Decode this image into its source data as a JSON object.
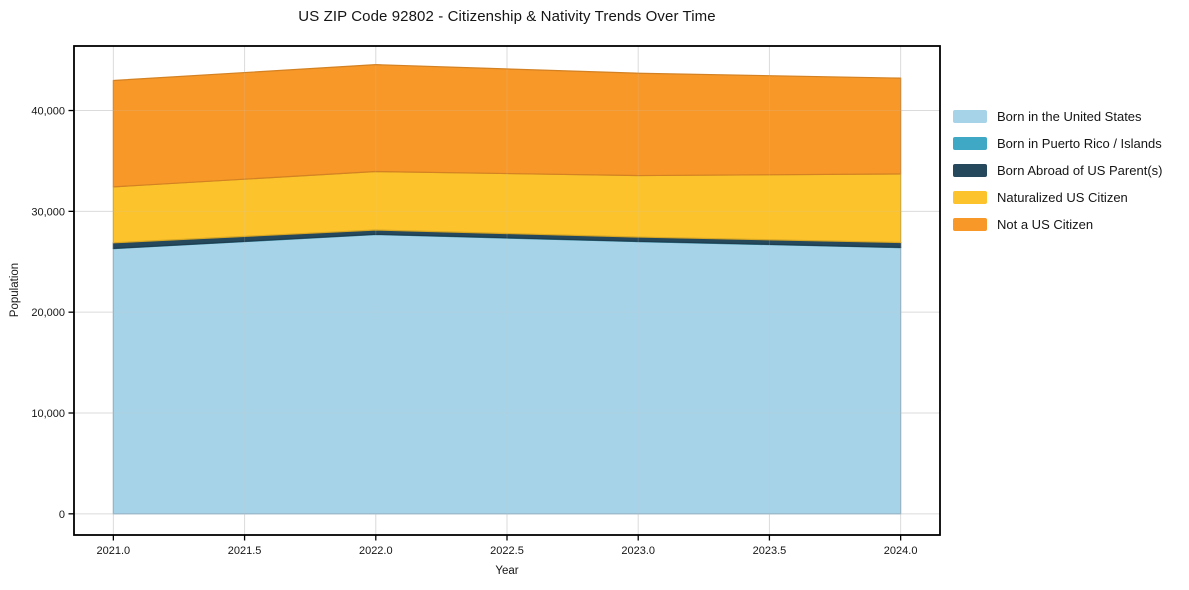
{
  "chart_data": {
    "type": "area",
    "stacked": true,
    "title": "US ZIP Code 92802 - Citizenship & Nativity Trends Over Time",
    "xlabel": "Year",
    "ylabel": "Population",
    "x": [
      2021,
      2022,
      2023,
      2024
    ],
    "series": [
      {
        "name": "Born in the United States",
        "color": "#A7D3E8",
        "values": [
          26300,
          27700,
          27000,
          26400
        ]
      },
      {
        "name": "Born in Puerto Rico / Islands",
        "color": "#3FA8C4",
        "values": [
          30,
          30,
          30,
          30
        ]
      },
      {
        "name": "Born Abroad of US Parent(s)",
        "color": "#25485C",
        "values": [
          550,
          420,
          420,
          480
        ]
      },
      {
        "name": "Naturalized US Citizen",
        "color": "#FCC32C",
        "values": [
          5550,
          5800,
          6100,
          6800
        ]
      },
      {
        "name": "Not a US Citizen",
        "color": "#F89828",
        "values": [
          10550,
          10600,
          10150,
          9500
        ]
      }
    ],
    "totals_by_year": [
      42980,
      44550,
      43700,
      43210
    ],
    "xlim": [
      2020.85,
      2024.15
    ],
    "ylim": [
      -2100,
      46400
    ],
    "xticks": [
      2021.0,
      2021.5,
      2022.0,
      2022.5,
      2023.0,
      2023.5,
      2024.0
    ],
    "xtick_labels": [
      "2021.0",
      "2021.5",
      "2022.0",
      "2022.5",
      "2023.0",
      "2023.5",
      "2024.0"
    ],
    "yticks": [
      0,
      10000,
      20000,
      30000,
      40000
    ],
    "ytick_labels": [
      "0",
      "10,000",
      "20,000",
      "30,000",
      "40,000"
    ],
    "grid": true,
    "legend_position": "right",
    "grid_color": "#c8c8c8",
    "spine_color": "#000000",
    "text_color": "#151515"
  }
}
